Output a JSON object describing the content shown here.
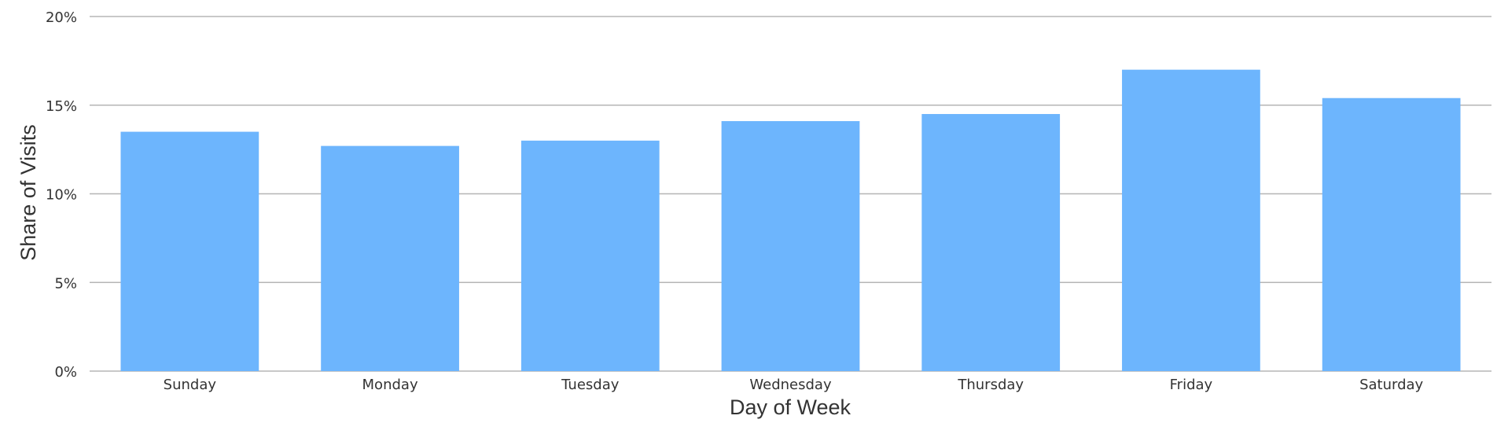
{
  "chart_data": {
    "type": "bar",
    "x_label": "Day of Week",
    "y_label": "Share of Visits",
    "categories": [
      "Sunday",
      "Monday",
      "Tuesday",
      "Wednesday",
      "Thursday",
      "Friday",
      "Saturday"
    ],
    "values": [
      13.5,
      12.7,
      13.0,
      14.1,
      14.5,
      17.0,
      15.4
    ],
    "color": "#6db5fd",
    "ylim": [
      0,
      20
    ],
    "yticks": [
      {
        "value": 0,
        "label": "0%"
      },
      {
        "value": 5,
        "label": "5%"
      },
      {
        "value": 10,
        "label": "10%"
      },
      {
        "value": 15,
        "label": "15%"
      },
      {
        "value": 20,
        "label": "20%"
      }
    ],
    "grid": true
  }
}
